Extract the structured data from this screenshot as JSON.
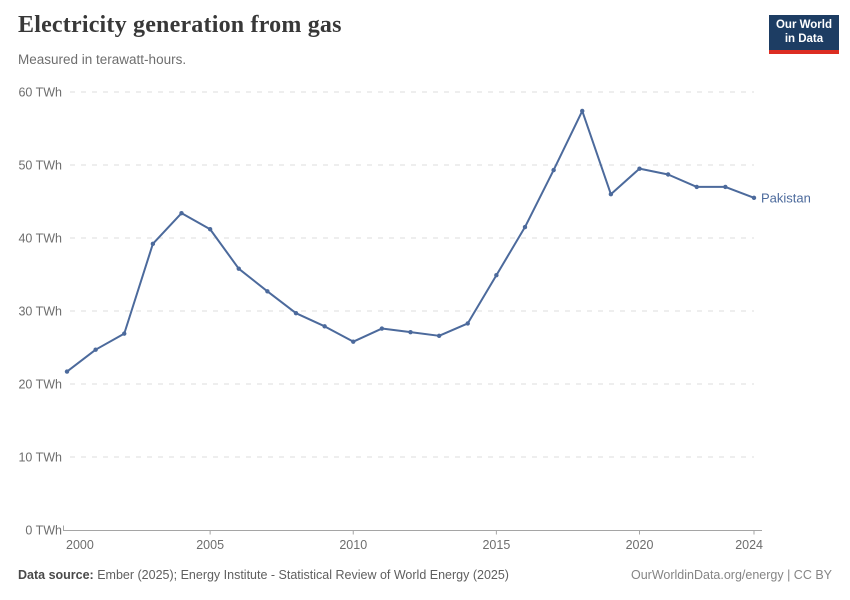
{
  "header": {
    "title": "Electricity generation from gas",
    "subtitle": "Measured in terawatt-hours.",
    "logo": {
      "line1": "Our World",
      "line2": "in Data"
    }
  },
  "chart_data": {
    "type": "line",
    "title": "Electricity generation from gas",
    "ylabel": "",
    "xlabel": "",
    "unit": "TWh",
    "grid": "horizontal-dashed",
    "xlim": [
      2000,
      2024
    ],
    "ylim": [
      0,
      60
    ],
    "xticks": [
      2000,
      2005,
      2010,
      2015,
      2020,
      2024
    ],
    "yticks": [
      0,
      10,
      20,
      30,
      40,
      50,
      60
    ],
    "ytick_suffix": " TWh",
    "legend_position": "end-of-line",
    "series": [
      {
        "name": "Pakistan",
        "color": "#4c6a9c",
        "x": [
          2000,
          2001,
          2002,
          2003,
          2004,
          2005,
          2006,
          2007,
          2008,
          2009,
          2010,
          2011,
          2012,
          2013,
          2014,
          2015,
          2016,
          2017,
          2018,
          2019,
          2020,
          2021,
          2022,
          2023,
          2024
        ],
        "values": [
          21.7,
          24.7,
          26.9,
          39.2,
          43.4,
          41.2,
          35.8,
          32.7,
          29.7,
          27.9,
          25.8,
          27.6,
          27.1,
          26.6,
          28.3,
          34.9,
          41.5,
          49.3,
          57.4,
          46.0,
          49.5,
          48.7,
          47.0,
          47.0,
          45.5
        ]
      }
    ]
  },
  "colors": {
    "line": "#4c6a9c",
    "grid": "#dddddd",
    "axis": "#a5a5a5",
    "tick_text": "#6e6e6e",
    "logo_bg": "#1d3d63",
    "logo_bar": "#dc2d22"
  },
  "footer": {
    "source_label": "Data source:",
    "source_text": " Ember (2025); Energy Institute - Statistical Review of World Energy (2025)",
    "rights": "OurWorldinData.org/energy | CC BY"
  }
}
